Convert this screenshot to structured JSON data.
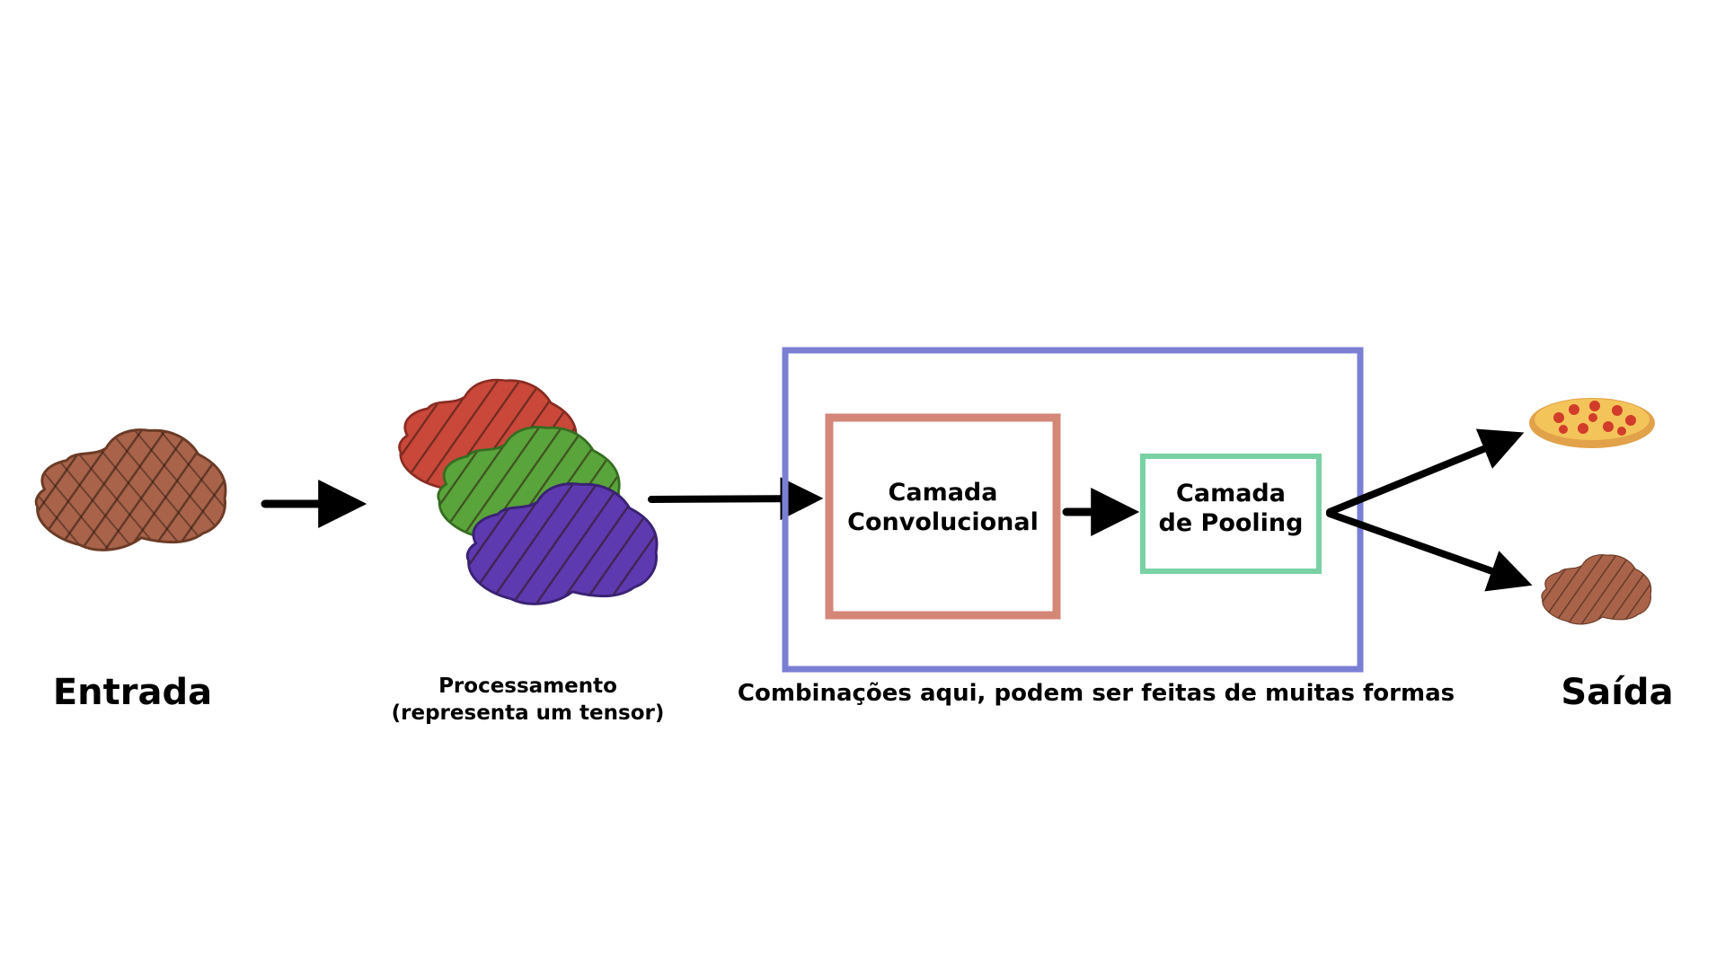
{
  "labels": {
    "input": "Entrada",
    "processing_line1": "Processamento",
    "processing_line2": "(representa um tensor)",
    "combinations": "Combinações aqui, podem ser feitas de muitas formas",
    "output": "Saída"
  },
  "boxes": {
    "conv_line1": "Camada",
    "conv_line2": "Convolucional",
    "pool_line1": "Camada",
    "pool_line2": "de Pooling"
  },
  "colors": {
    "outer_box": "#7b7fd4",
    "conv_box": "#d48677",
    "pool_box": "#79d1a4",
    "arrows": "#000000",
    "steak": "#9a5a3c",
    "channel_red": "#c9483a",
    "channel_green": "#5aa43c",
    "channel_blue": "#5e3ab0",
    "pizza": "#f0a53c"
  },
  "icons": {
    "input_image": "steak-icon",
    "channel_images": [
      "red-channel-steak-icon",
      "green-channel-steak-icon",
      "blue-channel-steak-icon"
    ],
    "output_images": [
      "pizza-icon",
      "steak-icon"
    ]
  }
}
